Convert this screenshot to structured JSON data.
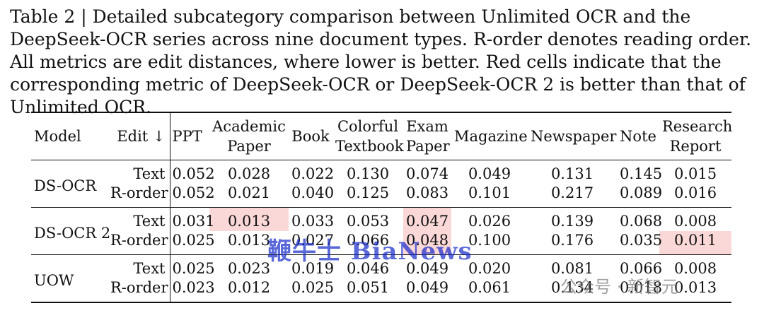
{
  "caption": "Table 2 | Detailed subcategory comparison between Unlimited OCR and the DeepSeek-OCR series across nine document types. R-order denotes reading order. All metrics are edit distances, where lower is better. Red cells indicate that the corresponding metric of DeepSeek-OCR or DeepSeek-OCR 2 is better than that of Unlimited OCR.",
  "headers": {
    "model": "Model",
    "edit": "Edit ↓",
    "cols": [
      [
        "PPT"
      ],
      [
        "Academic",
        "Paper"
      ],
      [
        "Book"
      ],
      [
        "Colorful",
        "Textbook"
      ],
      [
        "Exam",
        "Paper"
      ],
      [
        "Magazine"
      ],
      [
        "Newspaper"
      ],
      [
        "Note"
      ],
      [
        "Research",
        "Report"
      ]
    ]
  },
  "groups": [
    {
      "model": "DS-OCR",
      "rows": [
        {
          "metric": "Text",
          "values": [
            "0.052",
            "0.028",
            "0.022",
            "0.130",
            "0.074",
            "0.049",
            "0.131",
            "0.145",
            "0.015"
          ],
          "red": []
        },
        {
          "metric": "R-order",
          "values": [
            "0.052",
            "0.021",
            "0.040",
            "0.125",
            "0.083",
            "0.101",
            "0.217",
            "0.089",
            "0.016"
          ],
          "red": []
        }
      ]
    },
    {
      "model": "DS-OCR 2",
      "rows": [
        {
          "metric": "Text",
          "values": [
            "0.031",
            "0.013",
            "0.033",
            "0.053",
            "0.047",
            "0.026",
            "0.139",
            "0.068",
            "0.008"
          ],
          "red": [
            1,
            4
          ]
        },
        {
          "metric": "R-order",
          "values": [
            "0.025",
            "0.013",
            "0.027",
            "0.066",
            "0.048",
            "0.100",
            "0.176",
            "0.035",
            "0.011"
          ],
          "red": [
            4,
            8
          ]
        }
      ]
    },
    {
      "model": "UOW",
      "rows": [
        {
          "metric": "Text",
          "values": [
            "0.025",
            "0.023",
            "0.019",
            "0.046",
            "0.049",
            "0.020",
            "0.081",
            "0.066",
            "0.008"
          ],
          "red": []
        },
        {
          "metric": "R-order",
          "values": [
            "0.023",
            "0.012",
            "0.025",
            "0.051",
            "0.049",
            "0.061",
            "0.134",
            "0.018",
            "0.013"
          ],
          "red": []
        }
      ]
    }
  ],
  "watermark": "鞭牛士 BiaNews",
  "watermark2": "公众号 · 新智元",
  "colors": {
    "red_cell": "#fbd8d8"
  }
}
